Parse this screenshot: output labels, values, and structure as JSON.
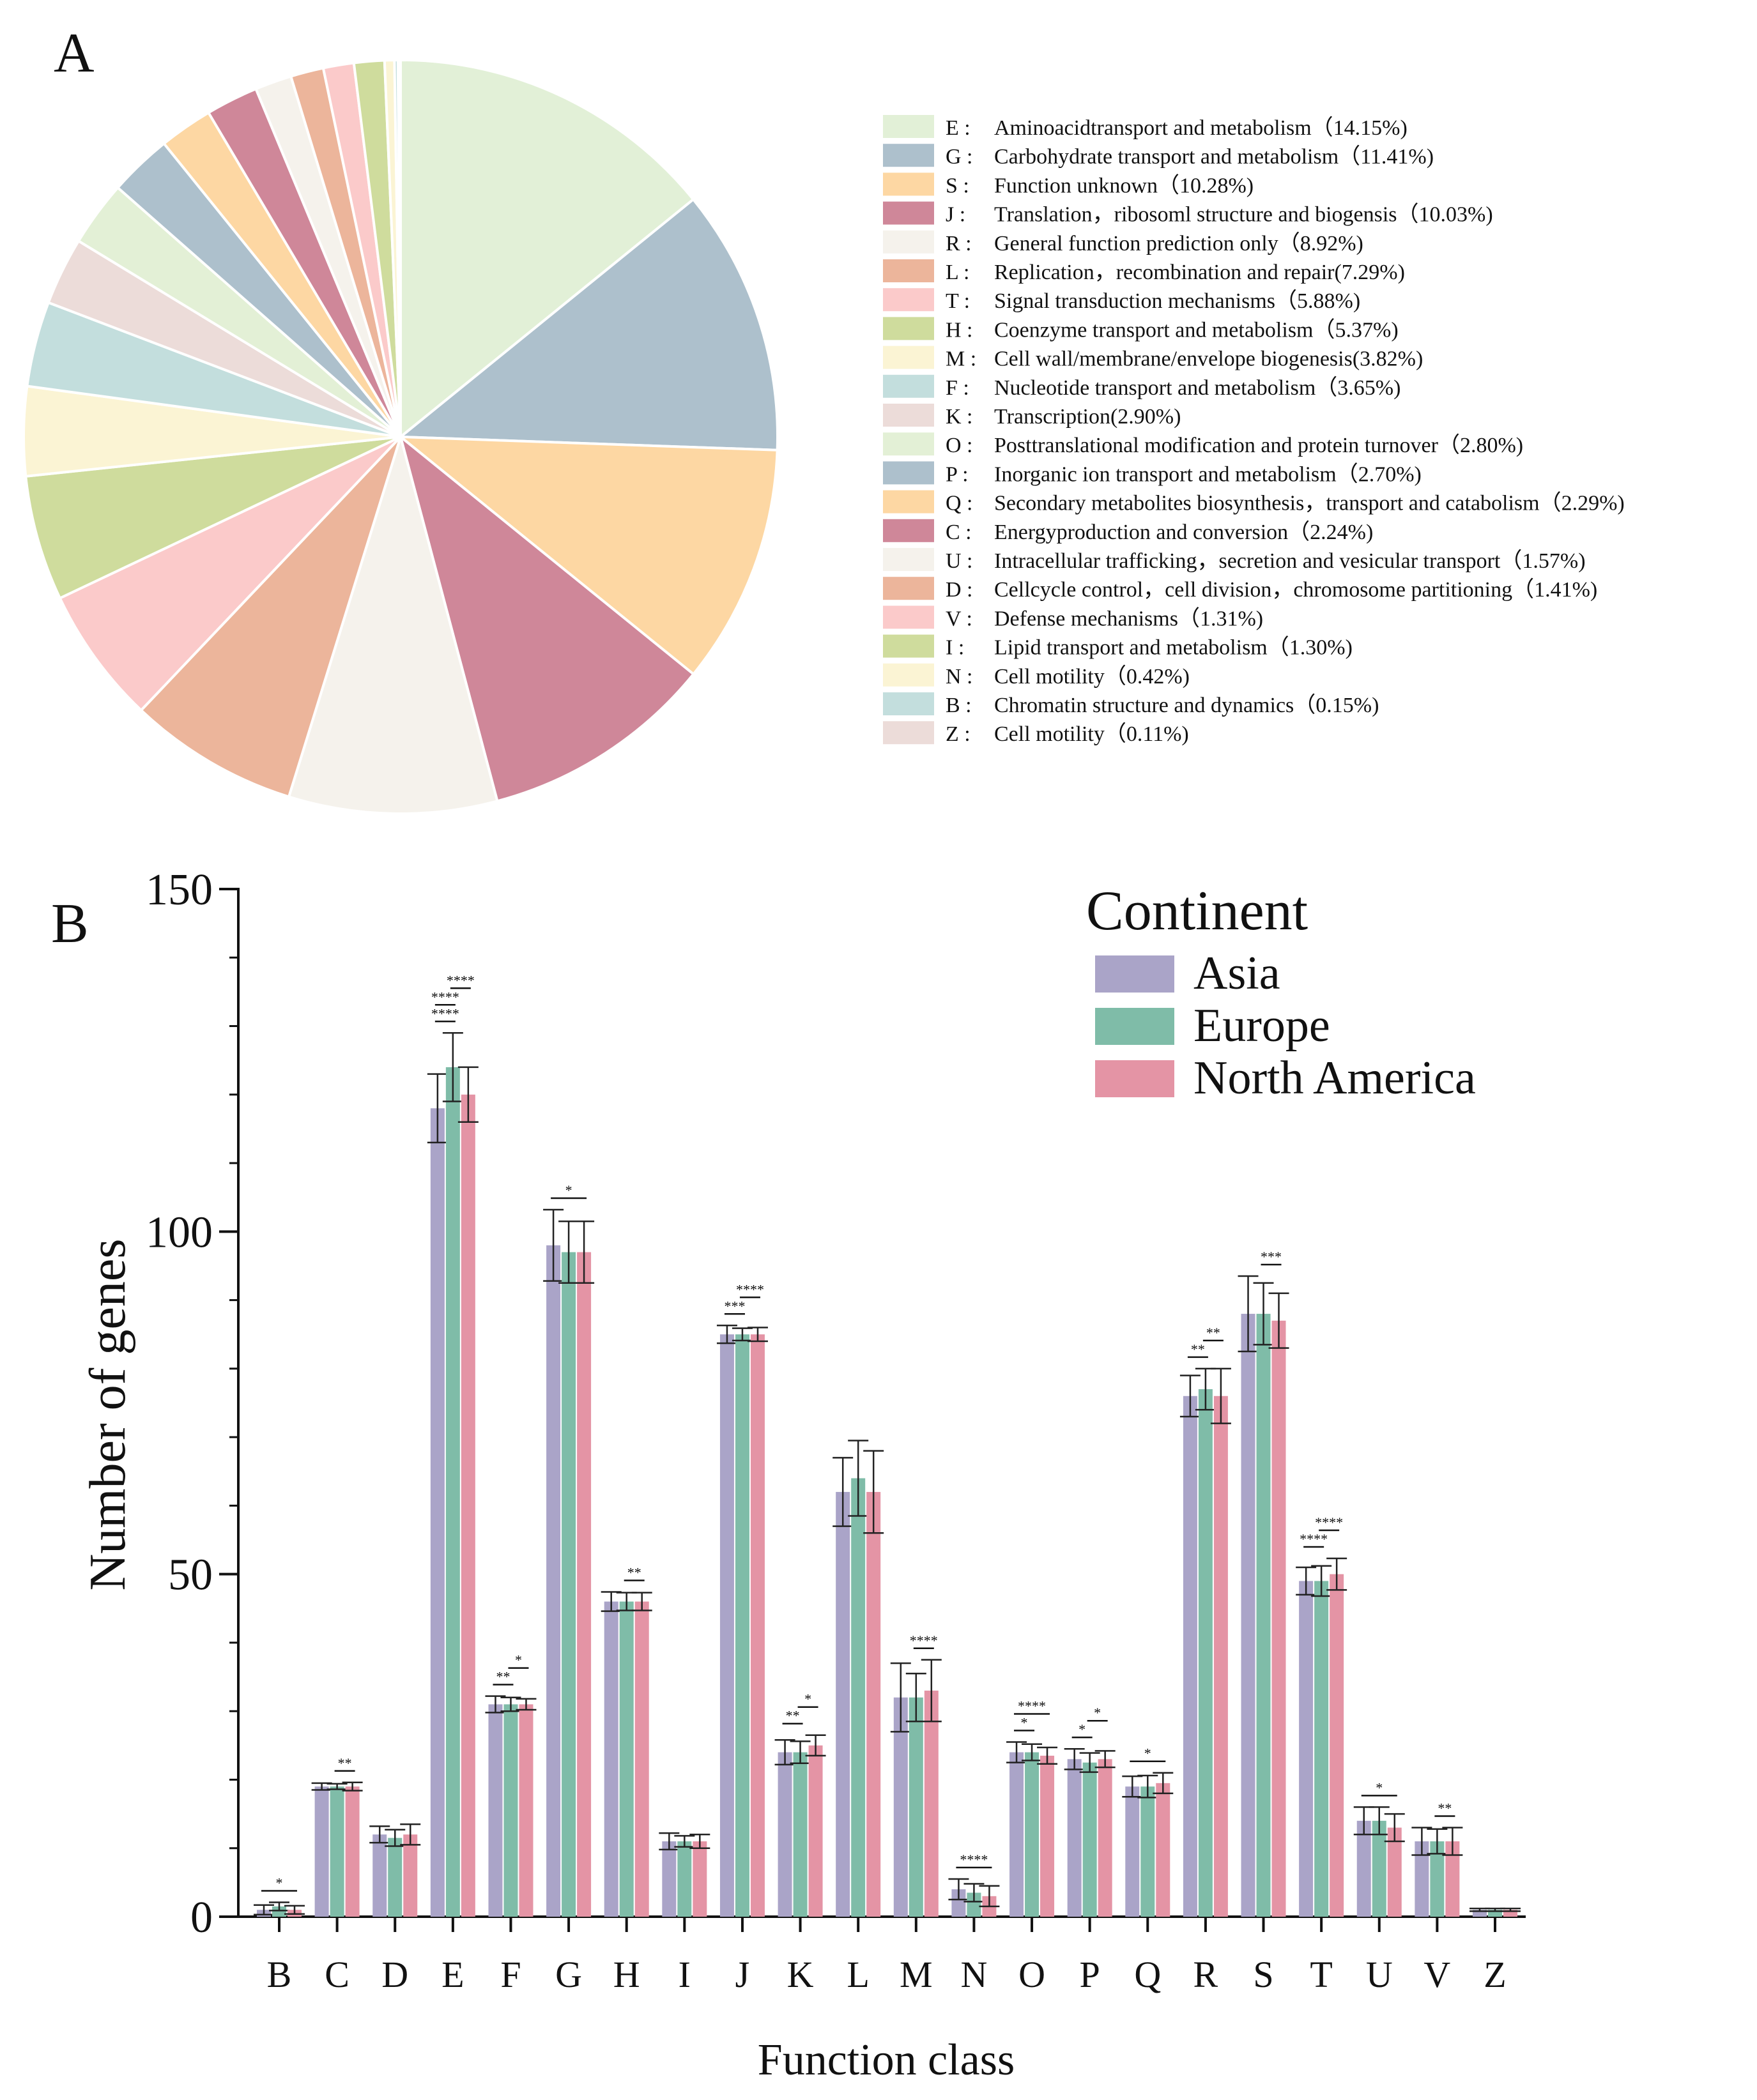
{
  "panel_a_label": "A",
  "panel_b_label": "B",
  "chart_data": [
    {
      "type": "pie",
      "panel": "A",
      "unit": "%",
      "categories": [
        {
          "code": "E",
          "label": "Aminoacidtransport and metabolism（14.15%)",
          "value": 14.15,
          "color": "#e2f0d7"
        },
        {
          "code": "G",
          "label": "Carbohydrate transport and metabolism（11.41%)",
          "value": 11.41,
          "color": "#adc0cc"
        },
        {
          "code": "S",
          "label": "Function unknown（10.28%)",
          "value": 10.28,
          "color": "#fdd7a3"
        },
        {
          "code": "J",
          "label": "Translation，ribosoml structure and biogensis（10.03%)",
          "value": 10.03,
          "color": "#cf8799"
        },
        {
          "code": "R",
          "label": "General function prediction only（8.92%)",
          "value": 8.92,
          "color": "#f5f2ec"
        },
        {
          "code": "L",
          "label": "Replication，recombination and repair(7.29%)",
          "value": 7.29,
          "color": "#ecb59b"
        },
        {
          "code": "T",
          "label": "Signal transduction mechanisms（5.88%)",
          "value": 5.88,
          "color": "#fbcaca"
        },
        {
          "code": "H",
          "label": "Coenzyme transport and metabolism（5.37%)",
          "value": 5.37,
          "color": "#cfdc9d"
        },
        {
          "code": "M",
          "label": "Cell wall/membrane/envelope biogenesis(3.82%)",
          "value": 3.82,
          "color": "#fbf4d4"
        },
        {
          "code": "F",
          "label": "Nucleotide transport and metabolism（3.65%)",
          "value": 3.65,
          "color": "#c3dedd"
        },
        {
          "code": "K",
          "label": "Transcription(2.90%)",
          "value": 2.9,
          "color": "#ecdcd9"
        },
        {
          "code": "O",
          "label": "Posttranslational modification and protein turnover（2.80%)",
          "value": 2.8,
          "color": "#e3f0d6"
        },
        {
          "code": "P",
          "label": "Inorganic ion transport and metabolism（2.70%)",
          "value": 2.7,
          "color": "#adc0cc"
        },
        {
          "code": "Q",
          "label": "Secondary metabolites biosynthesis，transport and catabolism（2.29%)",
          "value": 2.29,
          "color": "#fdd7a3"
        },
        {
          "code": "C",
          "label": "Energyproduction and conversion（2.24%)",
          "value": 2.24,
          "color": "#cf8799"
        },
        {
          "code": "U",
          "label": "Intracellular trafficking，secretion and vesicular transport（1.57%)",
          "value": 1.57,
          "color": "#f5f2ec"
        },
        {
          "code": "D",
          "label": "Cellcycle control，cell division，chromosome partitioning（1.41%)",
          "value": 1.41,
          "color": "#ecb59b"
        },
        {
          "code": "V",
          "label": "Defense mechanisms（1.31%)",
          "value": 1.31,
          "color": "#fbcaca"
        },
        {
          "code": "I",
          "label": "Lipid transport and metabolism（1.30%)",
          "value": 1.3,
          "color": "#cfdc9d"
        },
        {
          "code": "N",
          "label": "Cell motility（0.42%)",
          "value": 0.42,
          "color": "#fbf4d4"
        },
        {
          "code": "B",
          "label": "Chromatin structure and dynamics（0.15%)",
          "value": 0.15,
          "color": "#c3dedd"
        },
        {
          "code": "Z",
          "label": "Cell motility（0.11%)",
          "value": 0.11,
          "color": "#ecdcd9"
        }
      ]
    },
    {
      "type": "bar",
      "panel": "B",
      "xlabel": "Function class",
      "ylabel": "Number of genes",
      "ylim": [
        0,
        150
      ],
      "yticks": [
        "0",
        "50",
        "100",
        "150"
      ],
      "legend_title": "Continent",
      "legend_position": "top-right",
      "categories": [
        "B",
        "C",
        "D",
        "E",
        "F",
        "G",
        "H",
        "I",
        "J",
        "K",
        "L",
        "M",
        "N",
        "O",
        "P",
        "Q",
        "R",
        "S",
        "T",
        "U",
        "V",
        "Z"
      ],
      "series": [
        {
          "name": "Asia",
          "color": "#aaa4c8",
          "values": [
            1,
            19,
            12,
            118,
            31,
            98,
            46,
            11,
            85,
            24,
            62,
            32,
            4,
            24,
            23,
            19,
            76,
            88,
            49,
            14,
            11,
            1
          ],
          "errors": [
            0.7,
            0.5,
            1.2,
            5,
            1.2,
            5.2,
            1.4,
            1.2,
            1.3,
            1.8,
            5,
            5,
            1.5,
            1.5,
            1.5,
            1.5,
            3,
            5.5,
            2,
            2,
            2,
            0.2
          ]
        },
        {
          "name": "Europe",
          "color": "#7fbca8",
          "values": [
            1.5,
            19,
            11.5,
            124,
            31,
            97,
            46,
            11,
            85,
            24,
            64,
            32,
            3.5,
            24,
            22.5,
            19,
            77,
            88,
            49,
            14,
            11,
            1
          ],
          "errors": [
            0.6,
            0.4,
            1.2,
            5,
            1,
            4.5,
            1.3,
            0.8,
            0.9,
            1.6,
            5.5,
            3.5,
            1.3,
            1.2,
            1.4,
            1.6,
            3,
            4.5,
            2.2,
            2,
            1.8,
            0.2
          ]
        },
        {
          "name": "North America",
          "color": "#e494a5",
          "values": [
            1,
            19,
            12,
            120,
            31,
            97,
            46,
            11,
            85,
            25,
            62,
            33,
            3,
            23.5,
            23,
            19.5,
            76,
            87,
            50,
            13,
            11,
            1
          ],
          "errors": [
            0.6,
            0.6,
            1.5,
            4,
            0.8,
            4.5,
            1.3,
            1,
            1,
            1.5,
            6,
            4.5,
            1.5,
            1.2,
            1.2,
            1.5,
            4,
            4,
            2.3,
            2,
            2,
            0.2
          ]
        }
      ],
      "significance": [
        {
          "category": "B",
          "pairs": [
            {
              "from": "Asia",
              "to": "North America",
              "label": "*"
            }
          ]
        },
        {
          "category": "C",
          "pairs": [
            {
              "from": "Europe",
              "to": "North America",
              "label": "**"
            }
          ]
        },
        {
          "category": "E",
          "pairs": [
            {
              "from": "Asia",
              "to": "Europe",
              "label": "****"
            },
            {
              "from": "Asia",
              "to": "Europe",
              "label": "****"
            },
            {
              "from": "Europe",
              "to": "North America",
              "label": "****"
            }
          ]
        },
        {
          "category": "F",
          "pairs": [
            {
              "from": "Asia",
              "to": "Europe",
              "label": "**"
            },
            {
              "from": "Europe",
              "to": "North America",
              "label": "*"
            }
          ]
        },
        {
          "category": "G",
          "pairs": [
            {
              "from": "Asia",
              "to": "North America",
              "label": "*"
            }
          ]
        },
        {
          "category": "H",
          "pairs": [
            {
              "from": "Europe",
              "to": "North America",
              "label": "**"
            }
          ]
        },
        {
          "category": "J",
          "pairs": [
            {
              "from": "Asia",
              "to": "Europe",
              "label": "***"
            },
            {
              "from": "Europe",
              "to": "North America",
              "label": "****"
            }
          ]
        },
        {
          "category": "K",
          "pairs": [
            {
              "from": "Asia",
              "to": "Europe",
              "label": "**"
            },
            {
              "from": "Europe",
              "to": "North America",
              "label": "*"
            }
          ]
        },
        {
          "category": "M",
          "pairs": [
            {
              "from": "Europe",
              "to": "North America",
              "label": "****"
            }
          ]
        },
        {
          "category": "N",
          "pairs": [
            {
              "from": "Asia",
              "to": "North America",
              "label": "****"
            }
          ]
        },
        {
          "category": "O",
          "pairs": [
            {
              "from": "Asia",
              "to": "Europe",
              "label": "*"
            },
            {
              "from": "Asia",
              "to": "North America",
              "label": "****"
            }
          ]
        },
        {
          "category": "P",
          "pairs": [
            {
              "from": "Asia",
              "to": "Europe",
              "label": "*"
            },
            {
              "from": "Europe",
              "to": "North America",
              "label": "*"
            }
          ]
        },
        {
          "category": "Q",
          "pairs": [
            {
              "from": "Asia",
              "to": "North America",
              "label": "*"
            }
          ]
        },
        {
          "category": "R",
          "pairs": [
            {
              "from": "Asia",
              "to": "Europe",
              "label": "**"
            },
            {
              "from": "Europe",
              "to": "North America",
              "label": "**"
            }
          ]
        },
        {
          "category": "S",
          "pairs": [
            {
              "from": "Europe",
              "to": "North America",
              "label": "***"
            }
          ]
        },
        {
          "category": "T",
          "pairs": [
            {
              "from": "Asia",
              "to": "Europe",
              "label": "****"
            },
            {
              "from": "Europe",
              "to": "North America",
              "label": "****"
            }
          ]
        },
        {
          "category": "U",
          "pairs": [
            {
              "from": "Asia",
              "to": "North America",
              "label": "*"
            }
          ]
        },
        {
          "category": "V",
          "pairs": [
            {
              "from": "Europe",
              "to": "North America",
              "label": "**"
            }
          ]
        }
      ]
    }
  ]
}
